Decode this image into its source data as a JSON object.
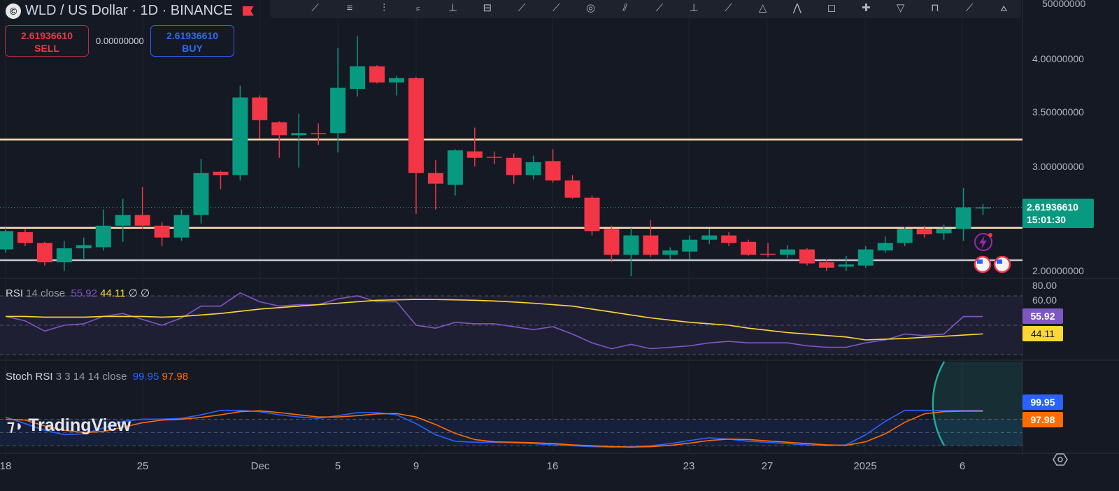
{
  "header": {
    "symbol_title": "WLD / US Dollar · 1D · BINANCE",
    "logo_letter": "©"
  },
  "trade": {
    "sell_price": "2.61936610",
    "sell_label": "SELL",
    "spread": "0.00000000",
    "buy_price": "2.61936610",
    "buy_label": "BUY"
  },
  "toolbar": {
    "icons": [
      "trend-line",
      "horizontal-lines",
      "pitchfork",
      "brush",
      "vertical-line",
      "rectangle",
      "ray",
      "path",
      "circle",
      "parallel-channel",
      "elliott-wave",
      "anchor",
      "arc",
      "triangle",
      "xabcd",
      "curve",
      "arrow",
      "diamond",
      "box",
      "polyline",
      "pattern"
    ]
  },
  "price_axis": {
    "labels": [
      "50000000",
      "4.00000000",
      "3.50000000",
      "3.00000000",
      "2.00000000"
    ],
    "current_price": "2.61936610",
    "countdown": "15:01:30"
  },
  "rsi": {
    "name": "RSI",
    "params": "14 close",
    "value": "55.92",
    "ma_value": "44.11",
    "extra1": "∅",
    "extra2": "∅",
    "axis": [
      "80.00",
      "60.00"
    ]
  },
  "stoch": {
    "name": "Stoch RSI",
    "params": "3 3 14 14 close",
    "k_value": "99.95",
    "d_value": "97.98"
  },
  "dates": [
    "18",
    "25",
    "Dec",
    "5",
    "9",
    "16",
    "23",
    "27",
    "2025",
    "6"
  ],
  "watermark": "TradingView",
  "colors": {
    "up": "#089981",
    "down": "#f23645",
    "rsi": "#7e57c2",
    "rsi_ma": "#fdd835",
    "stoch_k": "#2962ff",
    "stoch_d": "#ff6d00",
    "level": "#ffe0b2"
  },
  "chart_data": {
    "type": "candlestick",
    "start_date": "2024-11-18",
    "interval": "1D",
    "ohlc": [
      [
        2.23,
        2.43,
        2.2,
        2.4
      ],
      [
        2.39,
        2.42,
        2.26,
        2.29
      ],
      [
        2.29,
        2.3,
        2.08,
        2.11
      ],
      [
        2.11,
        2.31,
        2.03,
        2.24
      ],
      [
        2.24,
        2.34,
        2.13,
        2.27
      ],
      [
        2.25,
        2.6,
        2.22,
        2.45
      ],
      [
        2.45,
        2.7,
        2.3,
        2.55
      ],
      [
        2.55,
        2.81,
        2.42,
        2.45
      ],
      [
        2.45,
        2.48,
        2.26,
        2.34
      ],
      [
        2.34,
        2.6,
        2.31,
        2.55
      ],
      [
        2.55,
        3.07,
        2.47,
        2.94
      ],
      [
        2.95,
        2.96,
        2.79,
        2.92
      ],
      [
        2.92,
        3.75,
        2.87,
        3.64
      ],
      [
        3.64,
        3.66,
        3.26,
        3.43
      ],
      [
        3.41,
        3.42,
        3.08,
        3.29
      ],
      [
        3.29,
        3.49,
        2.99,
        3.31
      ],
      [
        3.31,
        3.4,
        3.2,
        3.3
      ],
      [
        3.31,
        4.1,
        3.13,
        3.73
      ],
      [
        3.72,
        4.21,
        3.65,
        3.93
      ],
      [
        3.93,
        3.94,
        3.77,
        3.78
      ],
      [
        3.78,
        3.84,
        3.66,
        3.82
      ],
      [
        3.82,
        3.83,
        2.56,
        2.94
      ],
      [
        2.94,
        3.06,
        2.6,
        2.84
      ],
      [
        2.83,
        3.16,
        2.73,
        3.15
      ],
      [
        3.14,
        3.36,
        3.0,
        3.08
      ],
      [
        3.09,
        3.14,
        3.02,
        3.08
      ],
      [
        3.08,
        3.12,
        2.84,
        2.92
      ],
      [
        2.92,
        3.1,
        2.88,
        3.04
      ],
      [
        3.05,
        3.16,
        2.85,
        2.87
      ],
      [
        2.87,
        2.92,
        2.7,
        2.71
      ],
      [
        2.71,
        2.73,
        2.36,
        2.4
      ],
      [
        2.42,
        2.45,
        2.11,
        2.18
      ],
      [
        2.18,
        2.43,
        1.98,
        2.36
      ],
      [
        2.36,
        2.5,
        2.16,
        2.18
      ],
      [
        2.18,
        2.25,
        2.14,
        2.22
      ],
      [
        2.21,
        2.36,
        2.14,
        2.32
      ],
      [
        2.32,
        2.42,
        2.28,
        2.36
      ],
      [
        2.36,
        2.39,
        2.26,
        2.29
      ],
      [
        2.3,
        2.32,
        2.17,
        2.18
      ],
      [
        2.19,
        2.29,
        2.16,
        2.18
      ],
      [
        2.18,
        2.27,
        2.15,
        2.23
      ],
      [
        2.23,
        2.24,
        2.08,
        2.1
      ],
      [
        2.11,
        2.14,
        2.03,
        2.06
      ],
      [
        2.07,
        2.17,
        2.03,
        2.09
      ],
      [
        2.08,
        2.26,
        2.06,
        2.23
      ],
      [
        2.22,
        2.35,
        2.2,
        2.29
      ],
      [
        2.29,
        2.44,
        2.26,
        2.42
      ],
      [
        2.42,
        2.45,
        2.34,
        2.37
      ],
      [
        2.38,
        2.46,
        2.32,
        2.42
      ],
      [
        2.42,
        2.8,
        2.31,
        2.62
      ],
      [
        2.62,
        2.65,
        2.55,
        2.62
      ]
    ],
    "horizontal_levels": [
      3.25,
      2.43,
      2.13
    ],
    "price_range": [
      1.98,
      4.5
    ],
    "rsi": [
      56,
      53,
      46,
      50,
      51,
      56,
      58,
      54,
      50,
      55,
      63,
      63,
      72,
      66,
      63,
      64,
      64,
      68,
      70,
      66,
      66,
      50,
      48,
      52,
      51,
      51,
      49,
      47,
      49,
      44,
      38,
      34,
      37,
      34,
      35,
      36,
      38,
      39,
      38,
      38,
      38,
      36,
      35,
      35,
      38,
      40,
      44,
      43,
      44,
      55.9,
      55.92
    ],
    "rsi_ma": [
      56,
      56,
      55.5,
      55.5,
      55.5,
      56,
      56,
      56,
      55.5,
      56,
      57,
      58,
      59.5,
      61,
      62,
      63,
      64,
      65,
      66,
      67,
      67.3,
      67.6,
      67.5,
      67.3,
      67,
      66.5,
      65.8,
      65,
      64,
      63,
      61,
      59,
      57,
      55,
      53.5,
      52,
      51,
      50,
      48,
      46.5,
      45,
      44,
      43,
      42,
      40,
      40.5,
      41,
      41.8,
      42.5,
      43.3,
      44.11
    ],
    "rsi_levels": [
      70,
      50,
      30
    ],
    "stoch_k": [
      85,
      70,
      55,
      45,
      47,
      60,
      75,
      80,
      80,
      82,
      90,
      100,
      100,
      97,
      90,
      85,
      82,
      88,
      95,
      95,
      90,
      70,
      45,
      30,
      28,
      28,
      27,
      25,
      22,
      20,
      18,
      17,
      18,
      20,
      25,
      32,
      38,
      35,
      30,
      28,
      25,
      22,
      20,
      22,
      45,
      75,
      100,
      100,
      99.9,
      99.95,
      99.95
    ],
    "stoch_d": [
      80,
      78,
      65,
      55,
      50,
      52,
      62,
      72,
      78,
      80,
      84,
      90,
      97,
      99,
      95,
      90,
      85,
      85,
      88,
      92,
      93,
      85,
      68,
      48,
      34,
      29,
      28,
      27,
      25,
      22,
      20,
      18,
      17,
      18,
      21,
      26,
      32,
      35,
      34,
      31,
      28,
      25,
      22,
      21,
      29,
      47,
      73,
      92,
      97,
      98,
      97.98
    ],
    "stoch_levels": [
      80,
      50,
      20
    ]
  }
}
